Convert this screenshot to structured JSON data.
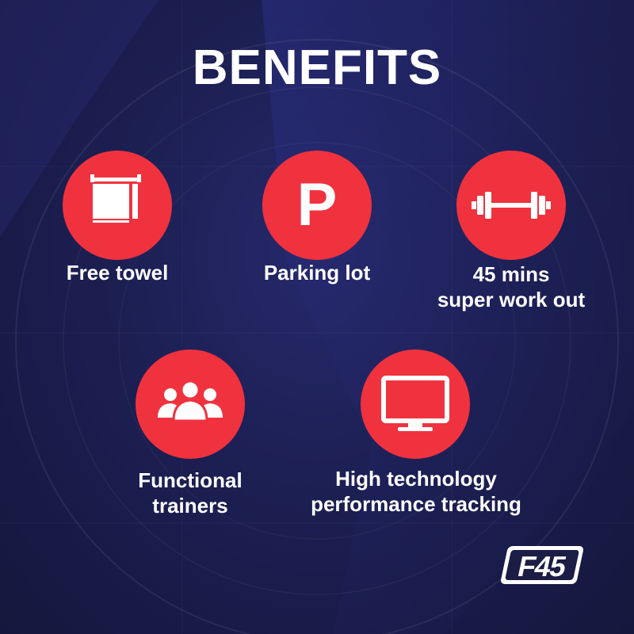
{
  "title": "BENEFITS",
  "colors": {
    "accent": "#f0323f",
    "background": "#1c1f52",
    "text": "#ffffff"
  },
  "benefits": [
    {
      "icon": "towel-icon",
      "lines": [
        "Free towel"
      ]
    },
    {
      "icon": "parking-icon",
      "icon_text": "P",
      "lines": [
        "Parking lot"
      ]
    },
    {
      "icon": "dumbbell-icon",
      "lines": [
        "45 mins",
        "super work out"
      ]
    },
    {
      "icon": "trainers-icon",
      "lines": [
        "Functional",
        "trainers"
      ]
    },
    {
      "icon": "monitor-icon",
      "lines": [
        "High technology",
        "performance tracking"
      ]
    }
  ],
  "logo": {
    "text": "F45"
  }
}
